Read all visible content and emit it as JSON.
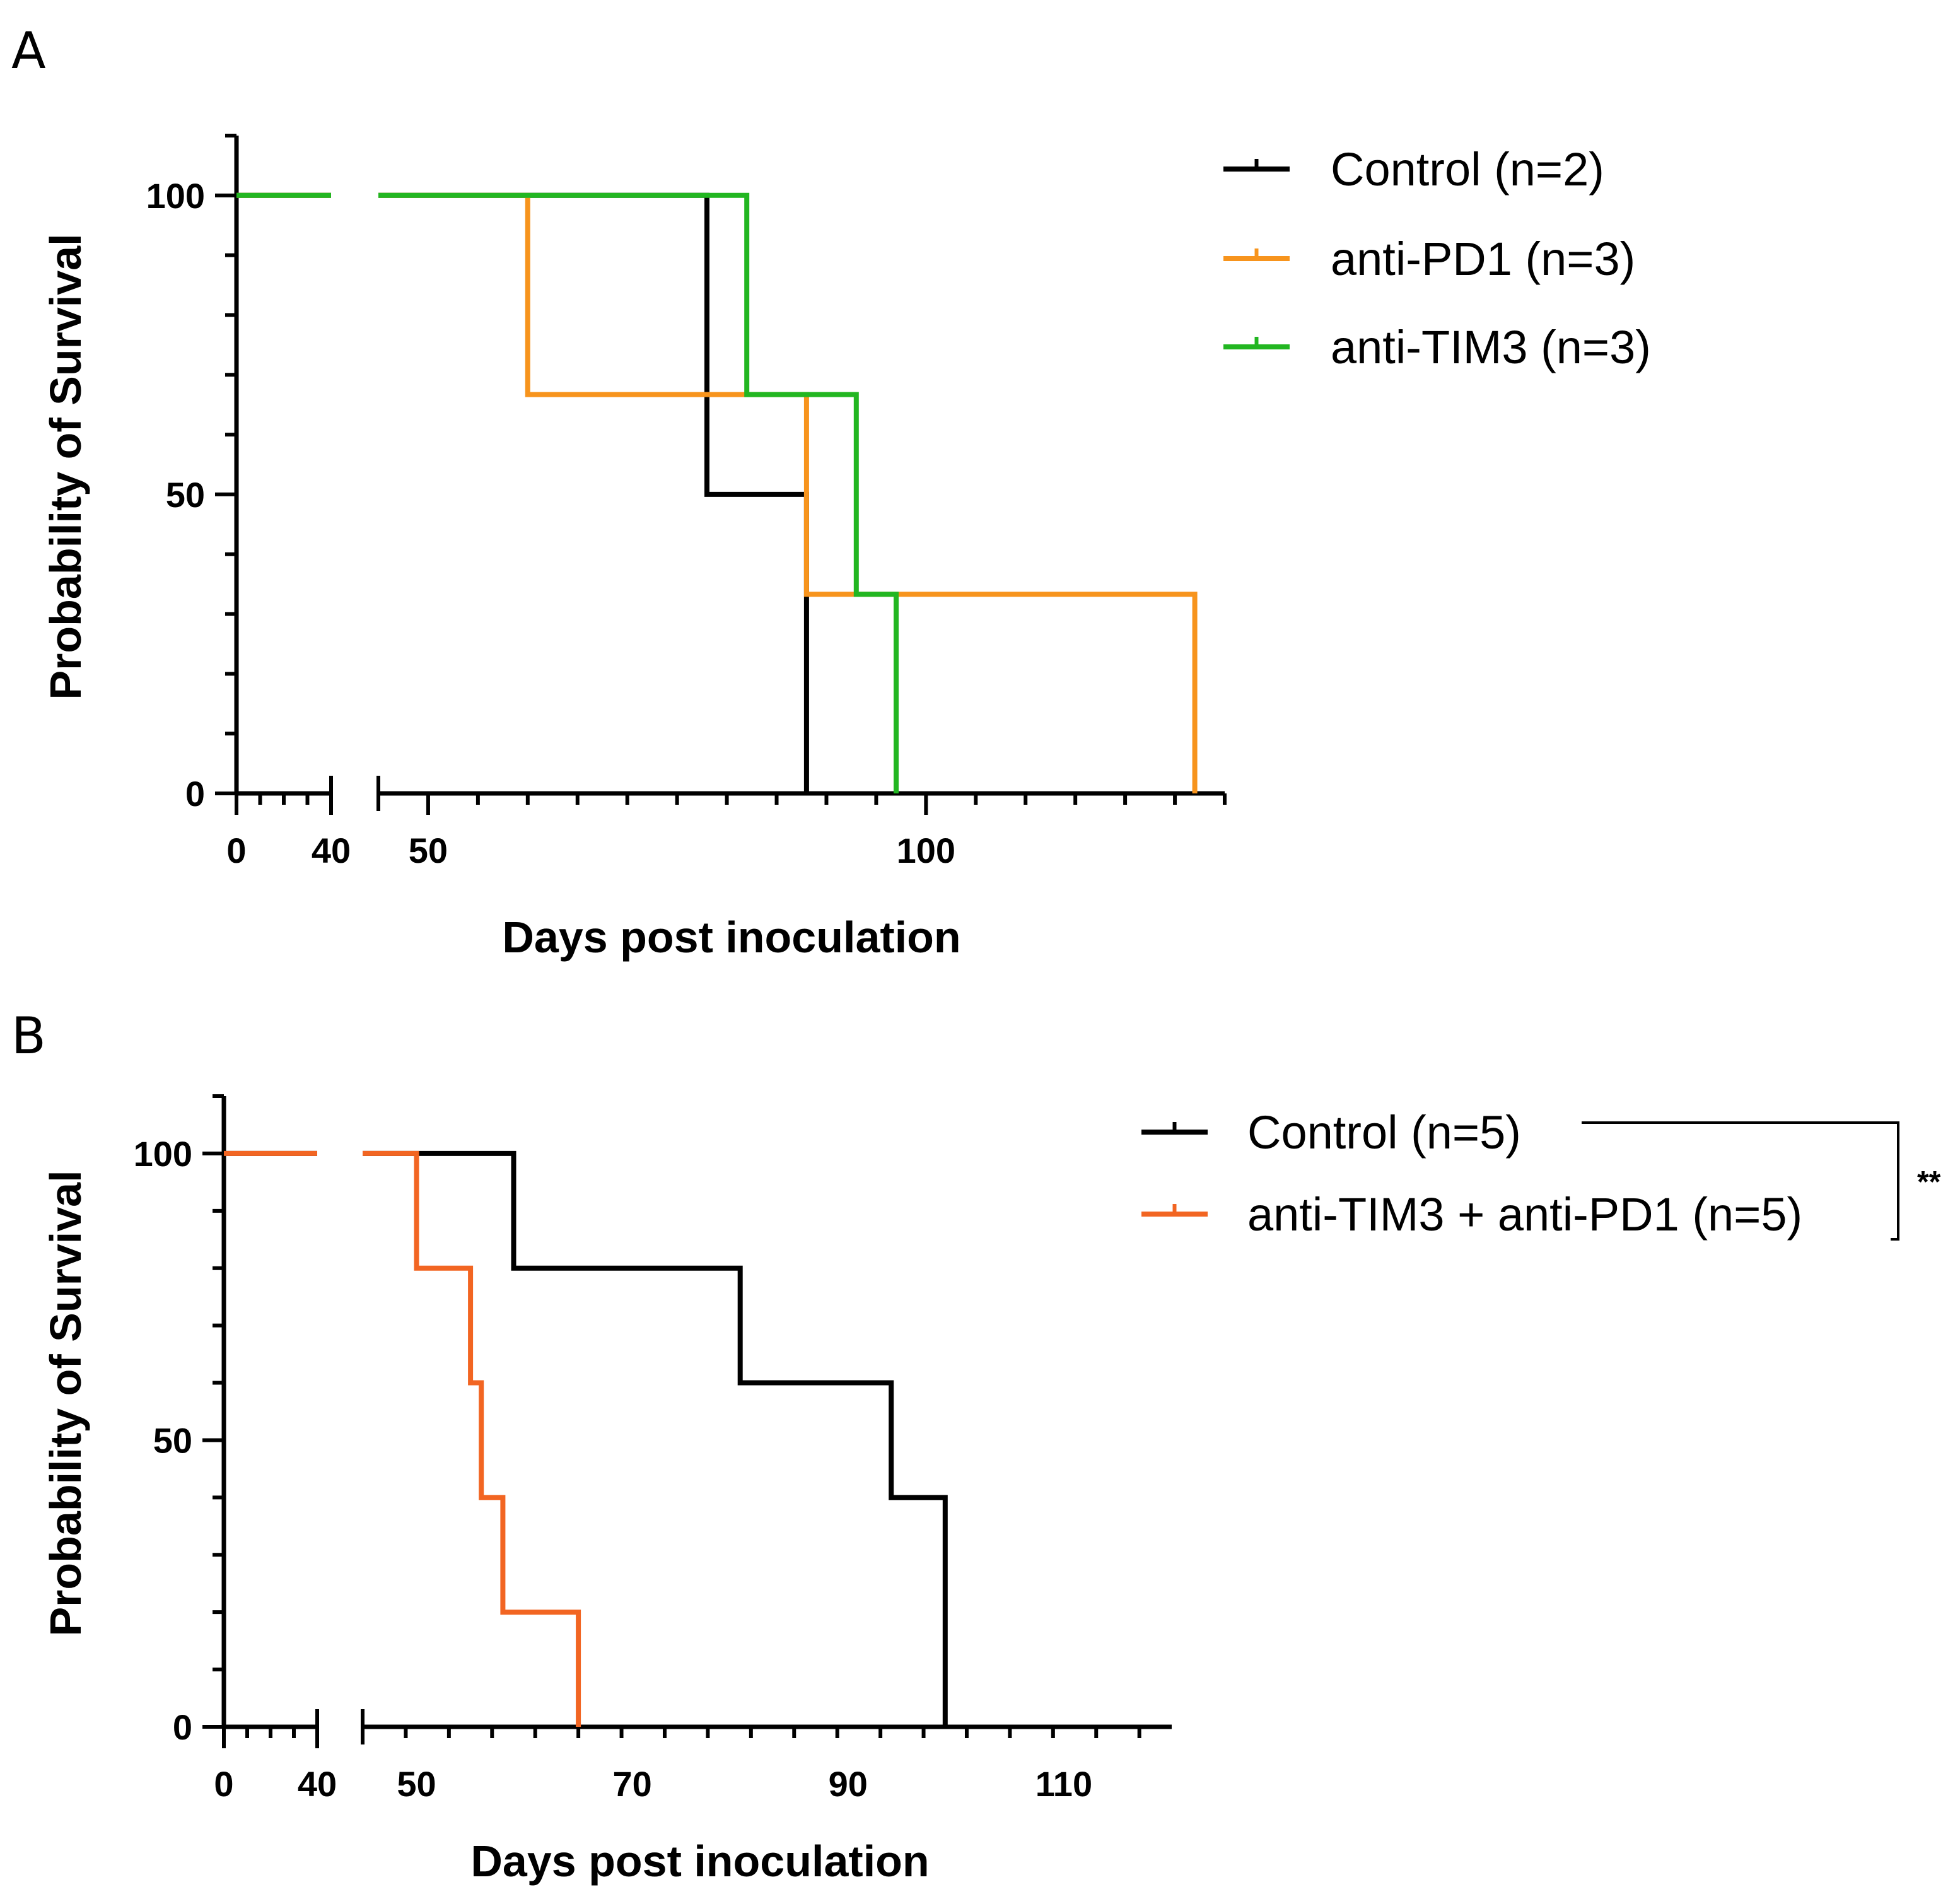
{
  "chart_data": [
    {
      "panel": "A",
      "type": "survival-step",
      "xlabel": "Days post inoculation",
      "ylabel": "Probability of Survival",
      "x_break": [
        40,
        45
      ],
      "x_ticks_labeled": [
        0,
        40,
        50,
        100
      ],
      "xlim": [
        0,
        130
      ],
      "ylim": [
        0,
        110
      ],
      "y_ticks": [
        0,
        50,
        100
      ],
      "series": [
        {
          "name": "Control (n=2)",
          "color": "#000000",
          "steps": [
            [
              0,
              100
            ],
            [
              78,
              100
            ],
            [
              78,
              50
            ],
            [
              88,
              50
            ],
            [
              88,
              0
            ]
          ]
        },
        {
          "name": "anti-PD1 (n=3)",
          "color": "#f7941d",
          "steps": [
            [
              0,
              100
            ],
            [
              60,
              100
            ],
            [
              60,
              66.7
            ],
            [
              88,
              66.7
            ],
            [
              88,
              33.3
            ],
            [
              127,
              33.3
            ],
            [
              127,
              0
            ]
          ]
        },
        {
          "name": "anti-TIM3 (n=3)",
          "color": "#22b621",
          "steps": [
            [
              0,
              100
            ],
            [
              82,
              100
            ],
            [
              82,
              66.7
            ],
            [
              93,
              66.7
            ],
            [
              93,
              33.3
            ],
            [
              97,
              33.3
            ],
            [
              97,
              0
            ]
          ]
        }
      ]
    },
    {
      "panel": "B",
      "type": "survival-step",
      "xlabel": "Days post inoculation",
      "ylabel": "Probability of Survival",
      "x_break": [
        40,
        45
      ],
      "x_ticks_labeled": [
        0,
        40,
        50,
        70,
        90,
        110
      ],
      "xlim": [
        0,
        120
      ],
      "ylim": [
        0,
        110
      ],
      "y_ticks": [
        0,
        50,
        100
      ],
      "significance": "**",
      "series": [
        {
          "name": "Control (n=5)",
          "color": "#000000",
          "steps": [
            [
              0,
              100
            ],
            [
              59,
              100
            ],
            [
              59,
              80
            ],
            [
              80,
              80
            ],
            [
              80,
              60
            ],
            [
              94,
              60
            ],
            [
              94,
              40
            ],
            [
              99,
              40
            ],
            [
              99,
              0
            ]
          ]
        },
        {
          "name": "anti-TIM3 + anti-PD1 (n=5)",
          "color": "#f26522",
          "steps": [
            [
              0,
              100
            ],
            [
              50,
              100
            ],
            [
              50,
              80
            ],
            [
              55,
              80
            ],
            [
              55,
              60
            ],
            [
              56,
              60
            ],
            [
              56,
              40
            ],
            [
              58,
              40
            ],
            [
              58,
              20
            ],
            [
              65,
              20
            ],
            [
              65,
              0
            ]
          ]
        }
      ]
    }
  ]
}
